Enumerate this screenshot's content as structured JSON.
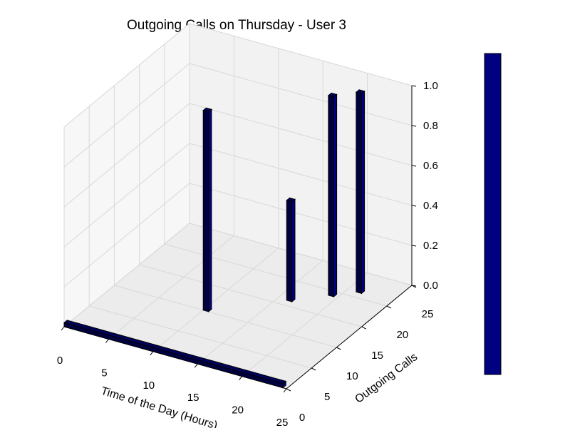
{
  "chart_data": {
    "type": "bar3d",
    "title": "Outgoing Calls on Thursday - User 3",
    "xlabel": "Time of the Day (Hours)",
    "ylabel": "Outgoing Calls",
    "zlabel": "",
    "xlim": [
      0,
      25
    ],
    "ylim": [
      0,
      25
    ],
    "zlim": [
      0,
      1.0
    ],
    "x_ticks": [
      "0",
      "5",
      "10",
      "15",
      "20",
      "25"
    ],
    "y_ticks": [
      "0",
      "5",
      "10",
      "15",
      "20",
      "25"
    ],
    "z_ticks": [
      "0.0",
      "0.2",
      "0.4",
      "0.6",
      "0.8",
      "1.0"
    ],
    "grid": true,
    "colorbar": true,
    "bar_color": "#000080",
    "bars": [
      {
        "x": 10,
        "y": 10,
        "z_bottom": 0.0,
        "z_top": 1.0
      },
      {
        "x": 16,
        "y": 16,
        "z_bottom": 0.0,
        "z_top": 0.5
      },
      {
        "x": 19,
        "y": 19,
        "z_bottom": 0.0,
        "z_top": 1.0
      },
      {
        "x": 21,
        "y": 21,
        "z_bottom": 0.0,
        "z_top": 1.0
      }
    ],
    "floor_strip": {
      "x_from": 0,
      "x_to": 24,
      "y": 0,
      "height": 0.02
    }
  }
}
